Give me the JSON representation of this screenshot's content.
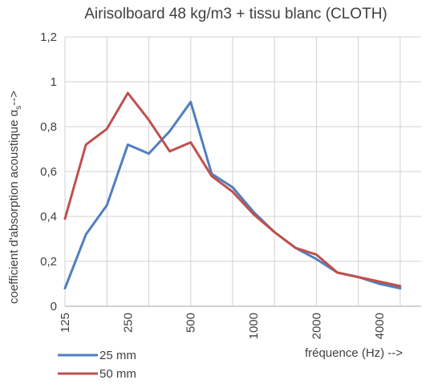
{
  "chart_data": {
    "type": "line",
    "title": "Airisolboard 48 kg/m3 + tissu blanc (CLOTH)",
    "ylabel_main": "coefficient d'absorption acoustique  α",
    "ylabel_sub": "s",
    "ylabel_arrow": "-->",
    "xlabel": "fréquence  (Hz) -->",
    "x": [
      125,
      160,
      200,
      250,
      315,
      400,
      500,
      630,
      800,
      1000,
      1250,
      1600,
      2000,
      2500,
      3150,
      4000,
      5000
    ],
    "x_tick_labels": [
      "125",
      "250",
      "500",
      "1000",
      "2000",
      "4000"
    ],
    "y_tick_labels": [
      "0",
      "0,2",
      "0,4",
      "0,6",
      "0,8",
      "1",
      "1,2"
    ],
    "ylim": [
      0,
      1.2
    ],
    "grid": true,
    "legend_position": "bottom-left",
    "series": [
      {
        "name": "25 mm",
        "color": "#4f7fbf",
        "values": [
          0.08,
          0.32,
          0.45,
          0.72,
          0.68,
          0.78,
          0.91,
          0.59,
          0.53,
          0.42,
          0.33,
          0.26,
          0.21,
          0.15,
          0.13,
          0.1,
          0.08
        ]
      },
      {
        "name": "50 mm",
        "color": "#c0504d",
        "values": [
          0.39,
          0.72,
          0.79,
          0.95,
          0.83,
          0.69,
          0.73,
          0.58,
          0.51,
          0.41,
          0.33,
          0.26,
          0.23,
          0.15,
          0.13,
          0.11,
          0.09
        ]
      }
    ]
  }
}
